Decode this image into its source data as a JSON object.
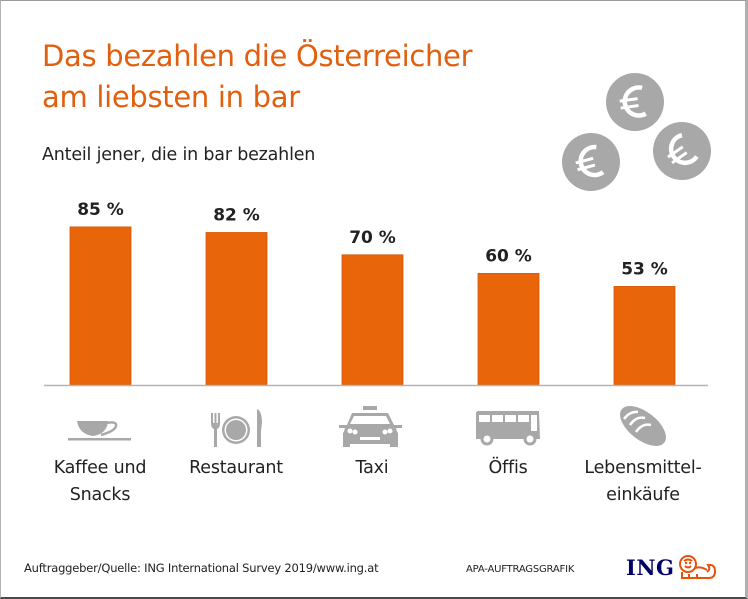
{
  "header": {
    "title_line1": "Das bezahlen die Österreicher",
    "title_line2": "am liebsten in bar",
    "subtitle": "Anteil jener, die in bar bezahlen"
  },
  "decor": {
    "coin_icon": "euro-coin-icon",
    "coin_symbol": "€",
    "coin_count": 3
  },
  "colors": {
    "title": "#E0600F",
    "bar": "#E8650A",
    "icon_gray": "#a8a8a8",
    "axis": "#b4b4b4",
    "ing_navy": "#000066",
    "ing_orange": "#E8520B"
  },
  "chart_data": {
    "type": "bar",
    "title": "Das bezahlen die Österreicher am liebsten in bar",
    "subtitle": "Anteil jener, die in bar bezahlen",
    "xlabel": "",
    "ylabel": "",
    "ylim": [
      0,
      100
    ],
    "grid": false,
    "categories": [
      "Kaffee und Snacks",
      "Restaurant",
      "Taxi",
      "Öffis",
      "Lebensmitteleinkäufe"
    ],
    "values": [
      85,
      82,
      70,
      60,
      53
    ],
    "unit": "%",
    "data_labels": [
      "85 %",
      "82 %",
      "70 %",
      "60 %",
      "53 %"
    ],
    "category_labels": [
      {
        "line1": "Kaffee und",
        "line2": "Snacks",
        "icon": "coffee-cup-icon"
      },
      {
        "line1": "Restaurant",
        "line2": "",
        "icon": "cutlery-plate-icon"
      },
      {
        "line1": "Taxi",
        "line2": "",
        "icon": "taxi-icon"
      },
      {
        "line1": "Öffis",
        "line2": "",
        "icon": "bus-icon"
      },
      {
        "line1": "Lebensmittel-",
        "line2": "einkäufe",
        "icon": "bread-icon"
      }
    ]
  },
  "footer": {
    "source": "Auftraggeber/Quelle: ING International Survey 2019/www.ing.at",
    "credit": "APA-AUFTRAGSGRAFIK",
    "logo_text": "ING",
    "logo_icon": "ing-lion-icon"
  }
}
